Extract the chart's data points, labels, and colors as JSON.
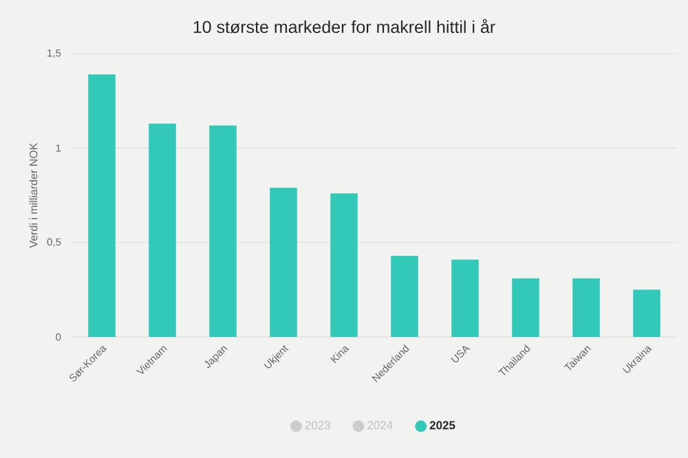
{
  "chart_data": {
    "type": "bar",
    "title": "10 største markeder for makrell hittil i år",
    "ylabel": "Verdi i milliarder NOK",
    "categories": [
      "Sør-Korea",
      "Vietnam",
      "Japan",
      "Ukjent",
      "Kina",
      "Nederland",
      "USA",
      "Thailand",
      "Taiwan",
      "Ukraina"
    ],
    "series": [
      {
        "name": "2023",
        "color": "#cccccc",
        "values": [
          null,
          null,
          null,
          null,
          null,
          null,
          null,
          null,
          null,
          null
        ]
      },
      {
        "name": "2024",
        "color": "#cccccc",
        "values": [
          null,
          null,
          null,
          null,
          null,
          null,
          null,
          null,
          null,
          null
        ]
      },
      {
        "name": "2025",
        "color": "#33c9b8",
        "values": [
          1.39,
          1.13,
          1.12,
          0.79,
          0.76,
          0.43,
          0.41,
          0.31,
          0.31,
          0.25
        ]
      }
    ],
    "ylim": [
      0,
      1.5
    ],
    "yticks": [
      0,
      {
        "value": 0.5,
        "label": "0,5"
      },
      1,
      {
        "value": 1.5,
        "label": "1,5"
      }
    ],
    "grid": "y",
    "legend": "bottom"
  }
}
